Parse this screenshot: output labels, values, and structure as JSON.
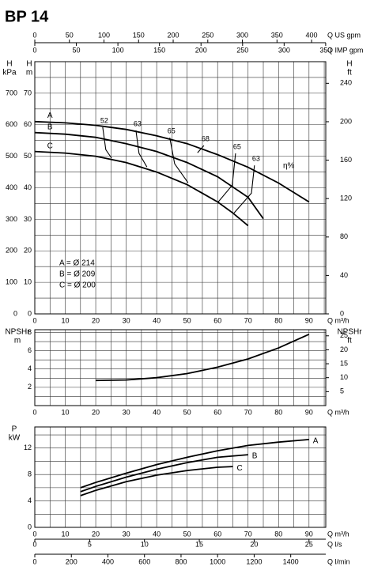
{
  "chart_data": [
    {
      "type": "line",
      "title": "BP 14",
      "xlabel": "Q m³/h",
      "xlim": [
        0,
        95.5
      ],
      "xticks": [
        0,
        10,
        20,
        30,
        40,
        50,
        60,
        70,
        80,
        90
      ],
      "ylabel": [
        "H",
        "m"
      ],
      "ylim": [
        0,
        80
      ],
      "yticks": [
        0,
        10,
        20,
        30,
        40,
        50,
        60,
        70
      ],
      "y3label": [
        "H",
        "kPa"
      ],
      "y3lim": [
        0,
        800
      ],
      "y3ticks": [
        0,
        100,
        200,
        300,
        400,
        500,
        600,
        700
      ],
      "y2label": [
        "H",
        "ft"
      ],
      "y2lim": [
        0,
        262.5
      ],
      "y2ticks": [
        0,
        40,
        80,
        120,
        160,
        200,
        240
      ],
      "extra_axes": [
        {
          "label": "Q US gpm",
          "xlim": [
            0,
            420.5
          ],
          "xticks": [
            0,
            50,
            100,
            150,
            200,
            250,
            300,
            350,
            400
          ]
        },
        {
          "label": "Q IMP gpm",
          "xlim": [
            0,
            350.1
          ],
          "xticks": [
            0,
            50,
            100,
            150,
            200,
            250,
            300,
            350
          ]
        }
      ],
      "grid": true,
      "series": [
        {
          "name": "A",
          "color": "#000000",
          "x": [
            0,
            10,
            20,
            30,
            40,
            50,
            60,
            70,
            80,
            90
          ],
          "values": [
            61,
            60.6,
            59.8,
            58.5,
            56.5,
            54,
            50.5,
            46.5,
            41.5,
            35.5
          ]
        },
        {
          "name": "B",
          "color": "#000000",
          "x": [
            0,
            10,
            20,
            30,
            40,
            50,
            60,
            70,
            75
          ],
          "values": [
            57.5,
            57,
            56,
            54,
            51.5,
            48,
            43.5,
            37,
            30.2
          ]
        },
        {
          "name": "C",
          "color": "#000000",
          "x": [
            0,
            10,
            20,
            30,
            40,
            50,
            60,
            65,
            70
          ],
          "values": [
            51.5,
            51,
            50,
            48,
            45,
            41,
            35.5,
            32,
            28
          ]
        }
      ],
      "efficiency": [
        {
          "label": "52",
          "x": [
            22.3,
            23.3,
            25.2
          ],
          "values": [
            59.2,
            52.1,
            49.4
          ]
        },
        {
          "label": "63",
          "x": [
            33.2,
            34.2,
            36.8
          ],
          "values": [
            58.2,
            50.9,
            46.6
          ]
        },
        {
          "label": "65",
          "x": [
            44.3,
            45.9,
            50.3
          ],
          "values": [
            55.9,
            47.6,
            41.6
          ]
        },
        {
          "label": "68",
          "x": [
            53.4,
            55.5
          ],
          "values": [
            51.1,
            53.4
          ]
        },
        {
          "label": "65",
          "x": [
            65.9,
            64.8,
            60.2
          ],
          "values": [
            50.9,
            40.8,
            35.5
          ]
        },
        {
          "label": "63",
          "x": [
            72.1,
            71.1,
            65.4
          ],
          "values": [
            47.1,
            38.3,
            32
          ]
        }
      ],
      "annotation": "η%",
      "notes": [
        "A = Ø 214",
        "B = Ø 209",
        "C = Ø 200"
      ]
    },
    {
      "type": "line",
      "xlabel": "Q m³/h",
      "xlim": [
        0,
        95.5
      ],
      "xticks": [
        0,
        10,
        20,
        30,
        40,
        50,
        60,
        70,
        80,
        90
      ],
      "ylabel": [
        "NPSHr",
        "m"
      ],
      "ylim": [
        0,
        8.3
      ],
      "yticks": [
        2,
        4,
        6,
        8
      ],
      "y2label": [
        "NPSHr",
        "ft"
      ],
      "y2lim": [
        0,
        27.2
      ],
      "y2ticks": [
        5,
        10,
        15,
        20,
        25
      ],
      "grid": true,
      "series": [
        {
          "color": "#000000",
          "x": [
            20,
            30,
            40,
            50,
            60,
            70,
            80,
            90
          ],
          "values": [
            2.75,
            2.8,
            3.05,
            3.5,
            4.2,
            5.1,
            6.3,
            7.8
          ]
        }
      ]
    },
    {
      "type": "line",
      "xlabel": "Q m³/h",
      "xlim": [
        0,
        95.5
      ],
      "xticks": [
        0,
        10,
        20,
        30,
        40,
        50,
        60,
        70,
        80,
        90
      ],
      "ylabel": [
        "P",
        "kW"
      ],
      "ylim": [
        0,
        15.2
      ],
      "yticks": [
        0,
        4,
        8,
        12
      ],
      "extra_axes": [
        {
          "label": "Q l/s",
          "xlim": [
            0,
            26.53
          ],
          "xticks": [
            0,
            5,
            10,
            15,
            20,
            25
          ]
        },
        {
          "label": "Q l/min",
          "xlim": [
            0,
            1591.7
          ],
          "xticks": [
            0,
            200,
            400,
            600,
            800,
            1000,
            1200,
            1400
          ]
        }
      ],
      "grid": true,
      "series": [
        {
          "name": "A",
          "color": "#000000",
          "x": [
            15,
            20,
            30,
            40,
            50,
            60,
            70,
            80,
            90
          ],
          "values": [
            6.0,
            6.8,
            8.2,
            9.5,
            10.6,
            11.6,
            12.4,
            12.9,
            13.3
          ]
        },
        {
          "name": "B",
          "color": "#000000",
          "x": [
            15,
            20,
            30,
            40,
            50,
            60,
            70
          ],
          "values": [
            5.4,
            6.2,
            7.6,
            8.8,
            9.8,
            10.6,
            11.0
          ]
        },
        {
          "name": "C",
          "color": "#000000",
          "x": [
            15,
            20,
            30,
            40,
            50,
            60,
            65
          ],
          "values": [
            4.8,
            5.6,
            6.9,
            7.9,
            8.6,
            9.1,
            9.2
          ]
        }
      ]
    }
  ]
}
